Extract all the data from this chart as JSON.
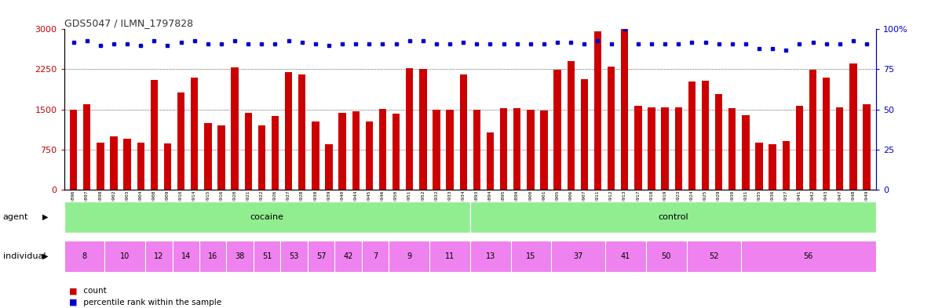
{
  "title": "GDS5047 / ILMN_1797828",
  "samples": [
    "GSM1324896",
    "GSM1324897",
    "GSM1324898",
    "GSM1324902",
    "GSM1324903",
    "GSM1324904",
    "GSM1324908",
    "GSM1324909",
    "GSM1324910",
    "GSM1324914",
    "GSM1324915",
    "GSM1324916",
    "GSM1324920",
    "GSM1324921",
    "GSM1324922",
    "GSM1324926",
    "GSM1324927",
    "GSM1324928",
    "GSM1324938",
    "GSM1324939",
    "GSM1324940",
    "GSM1324944",
    "GSM1324945",
    "GSM1324946",
    "GSM1324950",
    "GSM1324951",
    "GSM1324952",
    "GSM1324932",
    "GSM1324933",
    "GSM1324934",
    "GSM1324893",
    "GSM1324894",
    "GSM1324895",
    "GSM1324899",
    "GSM1324900",
    "GSM1324901",
    "GSM1324905",
    "GSM1324906",
    "GSM1324907",
    "GSM1324911",
    "GSM1324912",
    "GSM1324913",
    "GSM1324917",
    "GSM1324918",
    "GSM1324919",
    "GSM1324923",
    "GSM1324924",
    "GSM1324925",
    "GSM1324929",
    "GSM1324930",
    "GSM1324931",
    "GSM1324935",
    "GSM1324936",
    "GSM1324937",
    "GSM1324941",
    "GSM1324942",
    "GSM1324943",
    "GSM1324947",
    "GSM1324948",
    "GSM1324949"
  ],
  "counts": [
    1500,
    1600,
    880,
    1000,
    950,
    870,
    2050,
    860,
    1820,
    2100,
    1240,
    1200,
    2280,
    1430,
    1200,
    1380,
    2200,
    2160,
    1280,
    850,
    1430,
    1470,
    1280,
    1510,
    1420,
    2270,
    2260,
    1490,
    1500,
    2150,
    1500,
    1060,
    1520,
    1520,
    1490,
    1480,
    2240,
    2400,
    2060,
    2960,
    2300,
    3000,
    1560,
    1530,
    1530,
    1540,
    2020,
    2040,
    1780,
    1520,
    1390,
    870,
    840,
    900,
    1560,
    2240,
    2100,
    1540,
    2360,
    1590
  ],
  "percentiles": [
    92,
    93,
    90,
    91,
    91,
    90,
    93,
    90,
    92,
    93,
    91,
    91,
    93,
    91,
    91,
    91,
    93,
    92,
    91,
    90,
    91,
    91,
    91,
    91,
    91,
    93,
    93,
    91,
    91,
    92,
    91,
    91,
    91,
    91,
    91,
    91,
    92,
    92,
    91,
    93,
    91,
    100,
    91,
    91,
    91,
    91,
    92,
    92,
    91,
    91,
    91,
    88,
    88,
    87,
    91,
    92,
    91,
    91,
    93,
    91
  ],
  "cocaine_count": 30,
  "ylim_left": [
    0,
    3000
  ],
  "ylim_right": [
    0,
    100
  ],
  "yticks_left": [
    0,
    750,
    1500,
    2250,
    3000
  ],
  "yticks_right": [
    0,
    25,
    50,
    75,
    100
  ],
  "bar_color": "#cc0000",
  "dot_color": "#0000cc",
  "title_color": "#333333",
  "left_axis_color": "#cc0000",
  "right_axis_color": "#0000cc",
  "background_color": "#ffffff",
  "plot_bg_color": "#ffffff",
  "gridline_color": "#000000",
  "agent_row_label": "agent",
  "individual_row_label": "individual",
  "legend_count_color": "#cc0000",
  "legend_pct_color": "#0000cc",
  "agent_color": "#90ee90",
  "individual_color": "#ee82ee",
  "ind_groups": [
    [
      "8",
      0,
      3
    ],
    [
      "10",
      3,
      6
    ],
    [
      "12",
      6,
      8
    ],
    [
      "14",
      8,
      10
    ],
    [
      "16",
      10,
      12
    ],
    [
      "38",
      12,
      14
    ],
    [
      "51",
      14,
      16
    ],
    [
      "53",
      16,
      18
    ],
    [
      "57",
      18,
      20
    ],
    [
      "42",
      20,
      22
    ],
    [
      "7",
      22,
      24
    ],
    [
      "9",
      24,
      27
    ],
    [
      "11",
      27,
      30
    ],
    [
      "13",
      30,
      33
    ],
    [
      "15",
      33,
      36
    ],
    [
      "37",
      36,
      40
    ],
    [
      "41",
      40,
      43
    ],
    [
      "50",
      43,
      46
    ],
    [
      "52",
      46,
      50
    ],
    [
      "56",
      50,
      60
    ]
  ]
}
